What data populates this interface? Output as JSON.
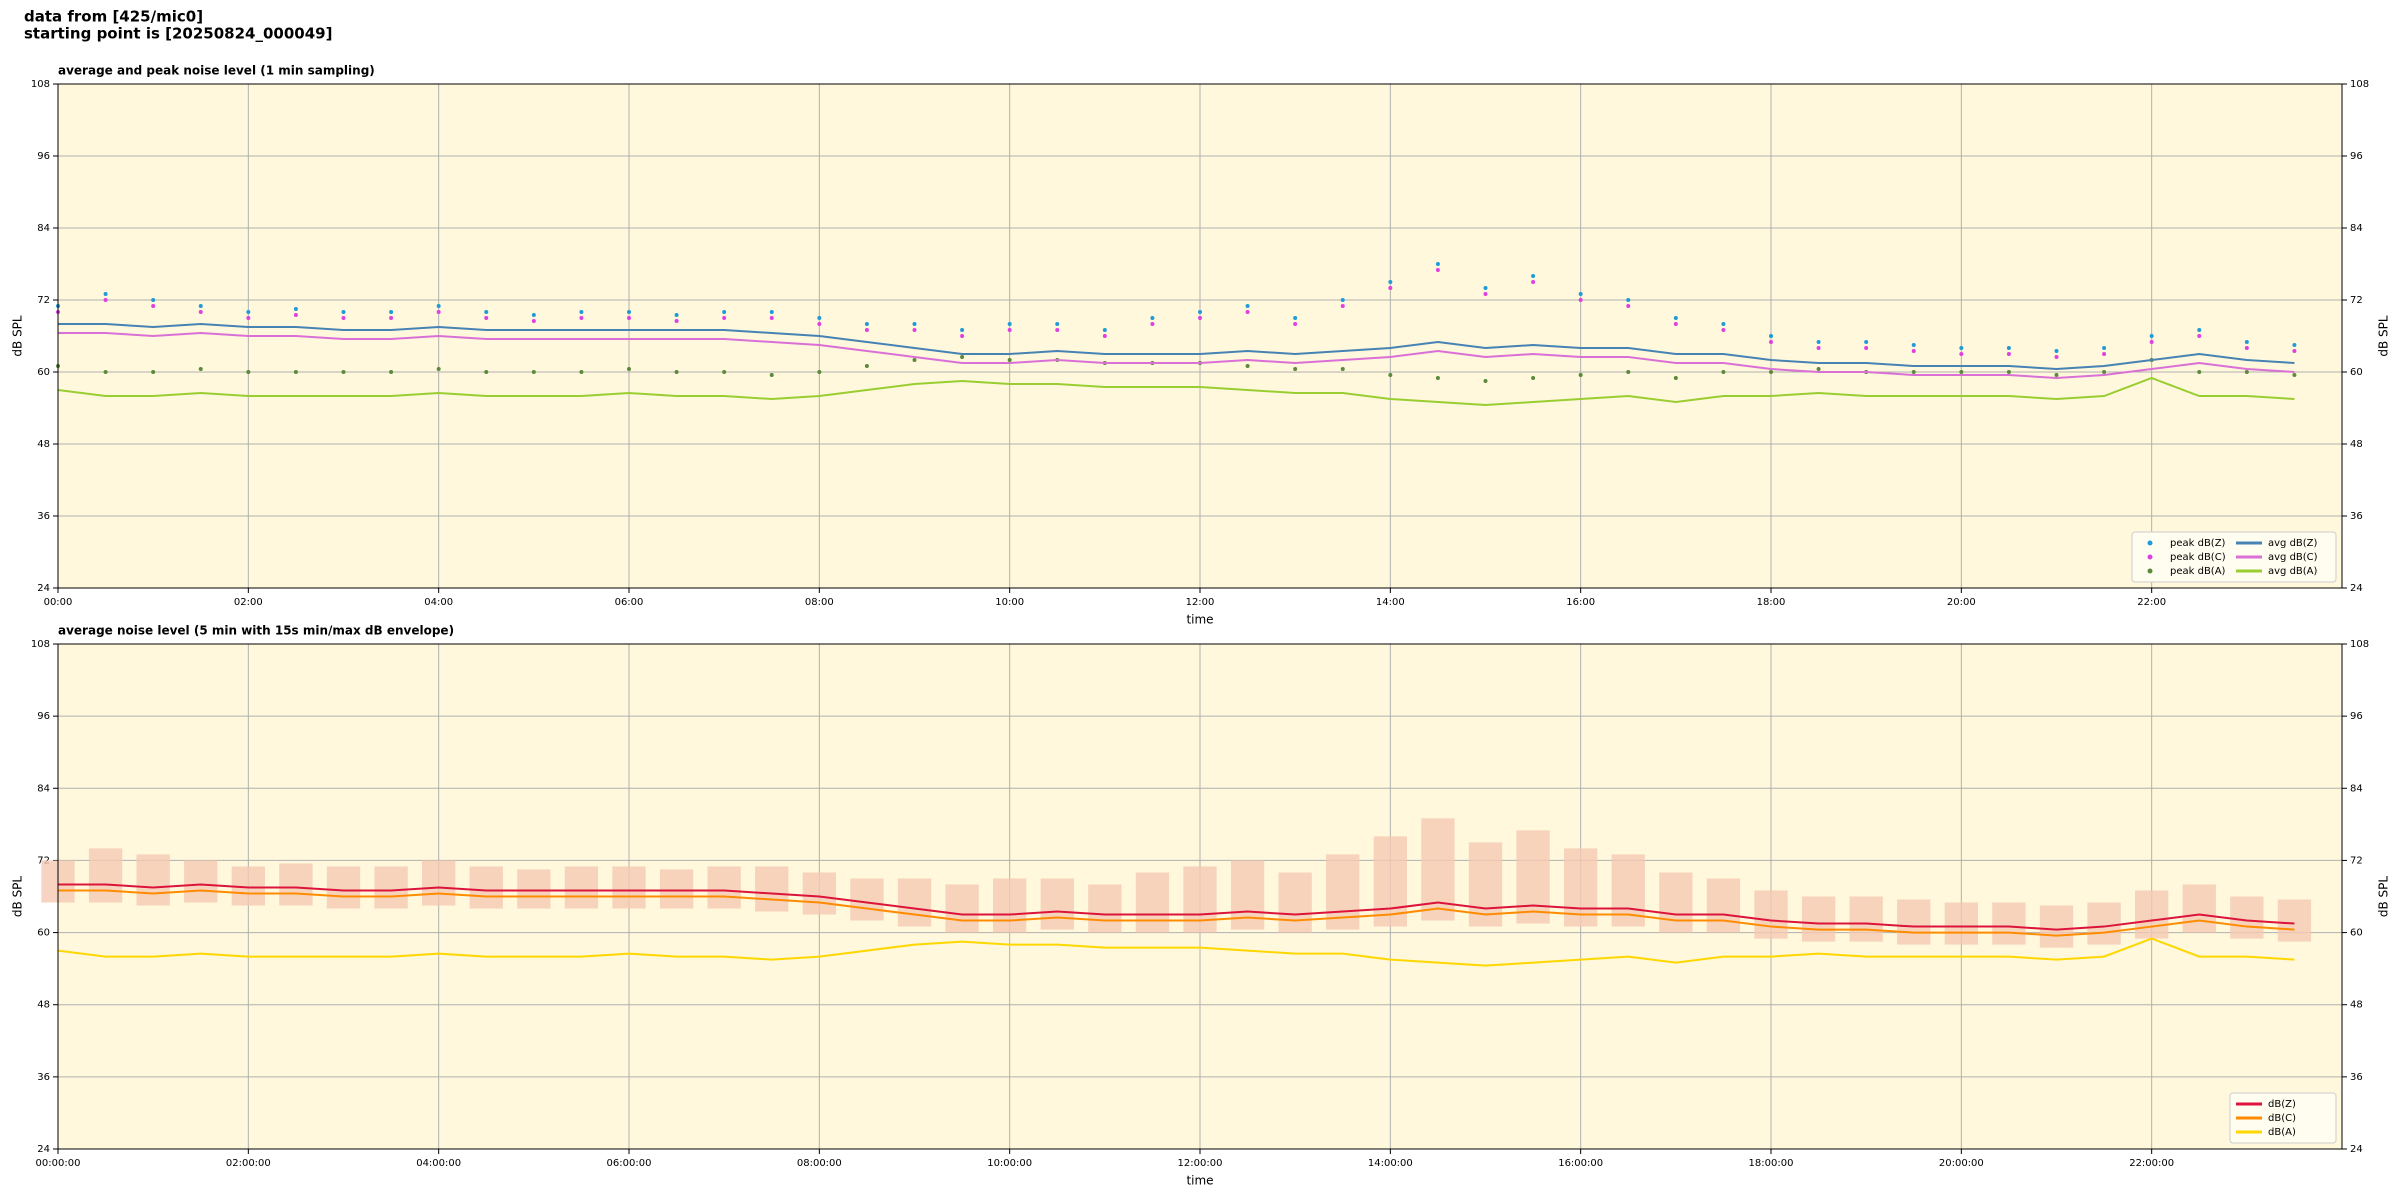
{
  "header": [
    "data from [425/mic0]",
    "starting point is [20250824_000049]"
  ],
  "chart_data": [
    {
      "type": "scatter-line",
      "title": "average and peak noise level (1 min sampling)",
      "xlabel": "time",
      "ylabel": "dB SPL",
      "y2label": "dB SPL",
      "xlim": [
        0,
        24
      ],
      "ylim": [
        24,
        108
      ],
      "y2lim": [
        24,
        108
      ],
      "xticks": [
        {
          "value": 0,
          "label": "00:00"
        },
        {
          "value": 2,
          "label": "02:00"
        },
        {
          "value": 4,
          "label": "04:00"
        },
        {
          "value": 6,
          "label": "06:00"
        },
        {
          "value": 8,
          "label": "08:00"
        },
        {
          "value": 10,
          "label": "10:00"
        },
        {
          "value": 12,
          "label": "12:00"
        },
        {
          "value": 14,
          "label": "14:00"
        },
        {
          "value": 16,
          "label": "16:00"
        },
        {
          "value": 18,
          "label": "18:00"
        },
        {
          "value": 20,
          "label": "20:00"
        },
        {
          "value": 22,
          "label": "22:00"
        }
      ],
      "yticks": [
        24,
        36,
        48,
        60,
        72,
        84,
        96,
        108
      ],
      "y2ticks": [
        24,
        36,
        48,
        60,
        72,
        84,
        96,
        108
      ],
      "grid": true,
      "facecolor": "#fff8dc",
      "legend": "lower right",
      "legend_columns": 2,
      "x": [
        0,
        0.5,
        1,
        1.5,
        2,
        2.5,
        3,
        3.5,
        4,
        4.5,
        5,
        5.5,
        6,
        6.5,
        7,
        7.5,
        8,
        8.5,
        9,
        9.5,
        10,
        10.5,
        11,
        11.5,
        12,
        12.5,
        13,
        13.5,
        14,
        14.5,
        15,
        15.5,
        16,
        16.5,
        17,
        17.5,
        18,
        18.5,
        19,
        19.5,
        20,
        20.5,
        21,
        21.5,
        22,
        22.5,
        23,
        23.5
      ],
      "series": [
        {
          "name": "peak dB(Z)",
          "kind": "scatter",
          "color": "#1f9bd7",
          "values": [
            71,
            73,
            72,
            71,
            70,
            70.5,
            70,
            70,
            71,
            70,
            69.5,
            70,
            70,
            69.5,
            70,
            70,
            69,
            68,
            68,
            67,
            68,
            68,
            67,
            69,
            70,
            71,
            69,
            72,
            75,
            78,
            74,
            76,
            73,
            72,
            69,
            68,
            66,
            65,
            65,
            64.5,
            64,
            64,
            63.5,
            64,
            66,
            67,
            65,
            64.5
          ]
        },
        {
          "name": "peak dB(C)",
          "kind": "scatter",
          "color": "#e040e0",
          "values": [
            70,
            72,
            71,
            70,
            69,
            69.5,
            69,
            69,
            70,
            69,
            68.5,
            69,
            69,
            68.5,
            69,
            69,
            68,
            67,
            67,
            66,
            67,
            67,
            66,
            68,
            69,
            70,
            68,
            71,
            74,
            77,
            73,
            75,
            72,
            71,
            68,
            67,
            65,
            64,
            64,
            63.5,
            63,
            63,
            62.5,
            63,
            65,
            66,
            64,
            63.5
          ]
        },
        {
          "name": "peak dB(A)",
          "kind": "scatter",
          "color": "#5a8a3a",
          "values": [
            61,
            60,
            60,
            60.5,
            60,
            60,
            60,
            60,
            60.5,
            60,
            60,
            60,
            60.5,
            60,
            60,
            59.5,
            60,
            61,
            62,
            62.5,
            62,
            62,
            61.5,
            61.5,
            61.5,
            61,
            60.5,
            60.5,
            59.5,
            59,
            58.5,
            59,
            59.5,
            60,
            59,
            60,
            60,
            60.5,
            60,
            60,
            60,
            60,
            59.5,
            60,
            62,
            60,
            60,
            59.5
          ]
        },
        {
          "name": "avg dB(Z)",
          "kind": "line",
          "color": "#4682b4",
          "values": [
            68,
            68,
            67.5,
            68,
            67.5,
            67.5,
            67,
            67,
            67.5,
            67,
            67,
            67,
            67,
            67,
            67,
            66.5,
            66,
            65,
            64,
            63,
            63,
            63.5,
            63,
            63,
            63,
            63.5,
            63,
            63.5,
            64,
            65,
            64,
            64.5,
            64,
            64,
            63,
            63,
            62,
            61.5,
            61.5,
            61,
            61,
            61,
            60.5,
            61,
            62,
            63,
            62,
            61.5
          ]
        },
        {
          "name": "avg dB(C)",
          "kind": "line",
          "color": "#da70d6",
          "values": [
            66.5,
            66.5,
            66,
            66.5,
            66,
            66,
            65.5,
            65.5,
            66,
            65.5,
            65.5,
            65.5,
            65.5,
            65.5,
            65.5,
            65,
            64.5,
            63.5,
            62.5,
            61.5,
            61.5,
            62,
            61.5,
            61.5,
            61.5,
            62,
            61.5,
            62,
            62.5,
            63.5,
            62.5,
            63,
            62.5,
            62.5,
            61.5,
            61.5,
            60.5,
            60,
            60,
            59.5,
            59.5,
            59.5,
            59,
            59.5,
            60.5,
            61.5,
            60.5,
            60
          ]
        },
        {
          "name": "avg dB(A)",
          "kind": "line",
          "color": "#9acd32",
          "values": [
            57,
            56,
            56,
            56.5,
            56,
            56,
            56,
            56,
            56.5,
            56,
            56,
            56,
            56.5,
            56,
            56,
            55.5,
            56,
            57,
            58,
            58.5,
            58,
            58,
            57.5,
            57.5,
            57.5,
            57,
            56.5,
            56.5,
            55.5,
            55,
            54.5,
            55,
            55.5,
            56,
            55,
            56,
            56,
            56.5,
            56,
            56,
            56,
            56,
            55.5,
            56,
            59,
            56,
            56,
            55.5
          ]
        }
      ]
    },
    {
      "type": "band-line",
      "title": "average noise level (5 min with 15s min/max dB envelope)",
      "xlabel": "time",
      "ylabel": "dB SPL",
      "y2label": "dB SPL",
      "xlim": [
        0,
        24
      ],
      "ylim": [
        24,
        108
      ],
      "y2lim": [
        24,
        108
      ],
      "xticks": [
        {
          "value": 0,
          "label": "00:00:00"
        },
        {
          "value": 2,
          "label": "02:00:00"
        },
        {
          "value": 4,
          "label": "04:00:00"
        },
        {
          "value": 6,
          "label": "06:00:00"
        },
        {
          "value": 8,
          "label": "08:00:00"
        },
        {
          "value": 10,
          "label": "10:00:00"
        },
        {
          "value": 12,
          "label": "12:00:00"
        },
        {
          "value": 14,
          "label": "14:00:00"
        },
        {
          "value": 16,
          "label": "16:00:00"
        },
        {
          "value": 18,
          "label": "18:00:00"
        },
        {
          "value": 20,
          "label": "20:00:00"
        },
        {
          "value": 22,
          "label": "22:00:00"
        }
      ],
      "yticks": [
        24,
        36,
        48,
        60,
        72,
        84,
        96,
        108
      ],
      "y2ticks": [
        24,
        36,
        48,
        60,
        72,
        84,
        96,
        108
      ],
      "grid": true,
      "facecolor": "#fff8dc",
      "legend": "lower right",
      "legend_columns": 1,
      "x": [
        0,
        0.5,
        1,
        1.5,
        2,
        2.5,
        3,
        3.5,
        4,
        4.5,
        5,
        5.5,
        6,
        6.5,
        7,
        7.5,
        8,
        8.5,
        9,
        9.5,
        10,
        10.5,
        11,
        11.5,
        12,
        12.5,
        13,
        13.5,
        14,
        14.5,
        15,
        15.5,
        16,
        16.5,
        17,
        17.5,
        18,
        18.5,
        19,
        19.5,
        20,
        20.5,
        21,
        21.5,
        22,
        22.5,
        23,
        23.5
      ],
      "envelope": {
        "color": "#f5c9b3",
        "low": [
          65,
          65,
          64.5,
          65,
          64.5,
          64.5,
          64,
          64,
          64.5,
          64,
          64,
          64,
          64,
          64,
          64,
          63.5,
          63,
          62,
          61,
          60,
          60,
          60.5,
          60,
          60,
          60,
          60.5,
          60,
          60.5,
          61,
          62,
          61,
          61.5,
          61,
          61,
          60,
          60,
          59,
          58.5,
          58.5,
          58,
          58,
          58,
          57.5,
          58,
          59,
          60,
          59,
          58.5
        ],
        "high": [
          72,
          74,
          73,
          72,
          71,
          71.5,
          71,
          71,
          72,
          71,
          70.5,
          71,
          71,
          70.5,
          71,
          71,
          70,
          69,
          69,
          68,
          69,
          69,
          68,
          70,
          71,
          72,
          70,
          73,
          76,
          79,
          75,
          77,
          74,
          73,
          70,
          69,
          67,
          66,
          66,
          65.5,
          65,
          65,
          64.5,
          65,
          67,
          68,
          66,
          65.5
        ]
      },
      "series": [
        {
          "name": "dB(Z)",
          "kind": "line",
          "color": "#dc143c",
          "values": [
            68,
            68,
            67.5,
            68,
            67.5,
            67.5,
            67,
            67,
            67.5,
            67,
            67,
            67,
            67,
            67,
            67,
            66.5,
            66,
            65,
            64,
            63,
            63,
            63.5,
            63,
            63,
            63,
            63.5,
            63,
            63.5,
            64,
            65,
            64,
            64.5,
            64,
            64,
            63,
            63,
            62,
            61.5,
            61.5,
            61,
            61,
            61,
            60.5,
            61,
            62,
            63,
            62,
            61.5
          ]
        },
        {
          "name": "dB(C)",
          "kind": "line",
          "color": "#ff8c00",
          "values": [
            67,
            67,
            66.5,
            67,
            66.5,
            66.5,
            66,
            66,
            66.5,
            66,
            66,
            66,
            66,
            66,
            66,
            65.5,
            65,
            64,
            63,
            62,
            62,
            62.5,
            62,
            62,
            62,
            62.5,
            62,
            62.5,
            63,
            64,
            63,
            63.5,
            63,
            63,
            62,
            62,
            61,
            60.5,
            60.5,
            60,
            60,
            60,
            59.5,
            60,
            61,
            62,
            61,
            60.5
          ]
        },
        {
          "name": "dB(A)",
          "kind": "line",
          "color": "#ffd700",
          "values": [
            57,
            56,
            56,
            56.5,
            56,
            56,
            56,
            56,
            56.5,
            56,
            56,
            56,
            56.5,
            56,
            56,
            55.5,
            56,
            57,
            58,
            58.5,
            58,
            58,
            57.5,
            57.5,
            57.5,
            57,
            56.5,
            56.5,
            55.5,
            55,
            54.5,
            55,
            55.5,
            56,
            55,
            56,
            56,
            56.5,
            56,
            56,
            56,
            56,
            55.5,
            56,
            59,
            56,
            56,
            55.5
          ]
        }
      ]
    }
  ]
}
